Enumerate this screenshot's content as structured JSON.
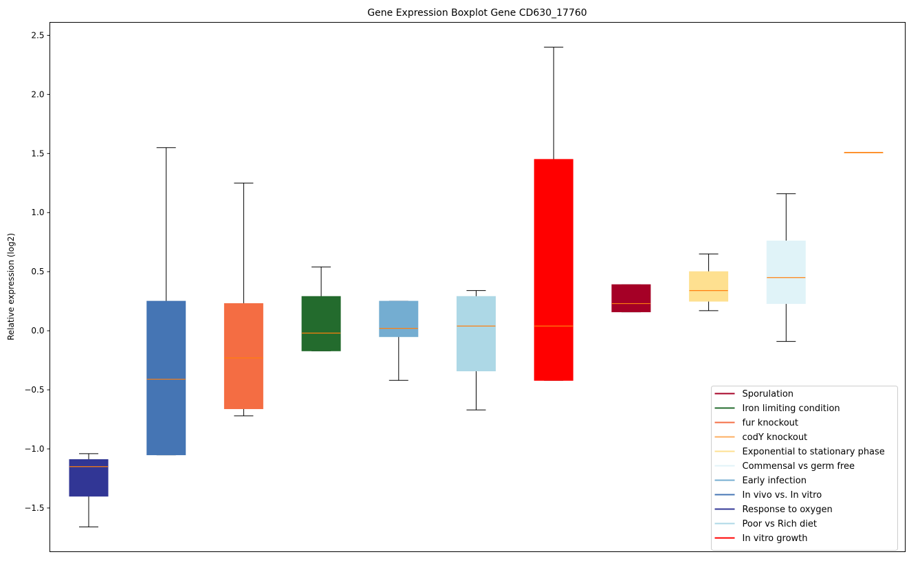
{
  "chart_data": {
    "type": "boxplot",
    "title": "Gene Expression Boxplot Gene CD630_17760",
    "xlabel": "",
    "ylabel": "Relative expression (log2)",
    "ylim": [
      -1.87,
      2.61
    ],
    "yticks": [
      -1.5,
      -1.0,
      -0.5,
      0.0,
      0.5,
      1.0,
      1.5,
      2.0,
      2.5
    ],
    "ytick_labels": [
      "−1.5",
      "−1.0",
      "−0.5",
      "0.0",
      "0.5",
      "1.0",
      "1.5",
      "2.0",
      "2.5"
    ],
    "grid": false,
    "median_color": "#ff7f0e",
    "legend_placement": "lower-right",
    "series": [
      {
        "name": "Response to oxygen",
        "color": "#313695",
        "whisker_low": -1.66,
        "q1": -1.4,
        "median": -1.15,
        "q3": -1.09,
        "whisker_high": -1.04
      },
      {
        "name": "In vivo vs. In vitro",
        "color": "#4575b4",
        "whisker_low": -1.05,
        "q1": -1.05,
        "median": -0.41,
        "q3": 0.25,
        "whisker_high": 1.55
      },
      {
        "name": "fur knockout",
        "color": "#f46d43",
        "whisker_low": -0.72,
        "q1": -0.66,
        "median": -0.23,
        "q3": 0.23,
        "whisker_high": 1.25
      },
      {
        "name": "Iron limiting condition",
        "color": "#236b2d",
        "whisker_low": -0.17,
        "q1": -0.17,
        "median": -0.02,
        "q3": 0.29,
        "whisker_high": 0.54
      },
      {
        "name": "Early infection",
        "color": "#74add1",
        "whisker_low": -0.42,
        "q1": -0.05,
        "median": 0.02,
        "q3": 0.25,
        "whisker_high": 0.25
      },
      {
        "name": "Poor vs Rich diet",
        "color": "#add8e6",
        "whisker_low": -0.67,
        "q1": -0.34,
        "median": 0.04,
        "q3": 0.29,
        "whisker_high": 0.34
      },
      {
        "name": "In vitro growth",
        "color": "#ff0000",
        "whisker_low": -0.42,
        "q1": -0.42,
        "median": 0.04,
        "q3": 1.45,
        "whisker_high": 2.4
      },
      {
        "name": "Sporulation",
        "color": "#a50026",
        "whisker_low": 0.16,
        "q1": 0.16,
        "median": 0.23,
        "q3": 0.39,
        "whisker_high": 0.39
      },
      {
        "name": "Exponential to stationary phase",
        "color": "#fee090",
        "whisker_low": 0.17,
        "q1": 0.25,
        "median": 0.34,
        "q3": 0.5,
        "whisker_high": 0.65
      },
      {
        "name": "Commensal vs germ free",
        "color": "#e0f3f8",
        "whisker_low": -0.09,
        "q1": 0.23,
        "median": 0.45,
        "q3": 0.76,
        "whisker_high": 1.16
      },
      {
        "name": "codY knockout",
        "color": "#fdae61",
        "whisker_low": 1.51,
        "q1": 1.51,
        "median": 1.51,
        "q3": 1.51,
        "whisker_high": 1.51
      }
    ],
    "legend": [
      {
        "label": "Sporulation",
        "color": "#a50026"
      },
      {
        "label": "Iron limiting condition",
        "color": "#236b2d"
      },
      {
        "label": "fur knockout",
        "color": "#f46d43"
      },
      {
        "label": "codY knockout",
        "color": "#fdae61"
      },
      {
        "label": "Exponential to stationary phase",
        "color": "#fee090"
      },
      {
        "label": "Commensal vs germ free",
        "color": "#e0f3f8"
      },
      {
        "label": "Early infection",
        "color": "#74add1"
      },
      {
        "label": "In vivo vs. In vitro",
        "color": "#4575b4"
      },
      {
        "label": "Response to oxygen",
        "color": "#313695"
      },
      {
        "label": "Poor vs Rich diet",
        "color": "#add8e6"
      },
      {
        "label": "In vitro growth",
        "color": "#ff0000"
      }
    ]
  }
}
